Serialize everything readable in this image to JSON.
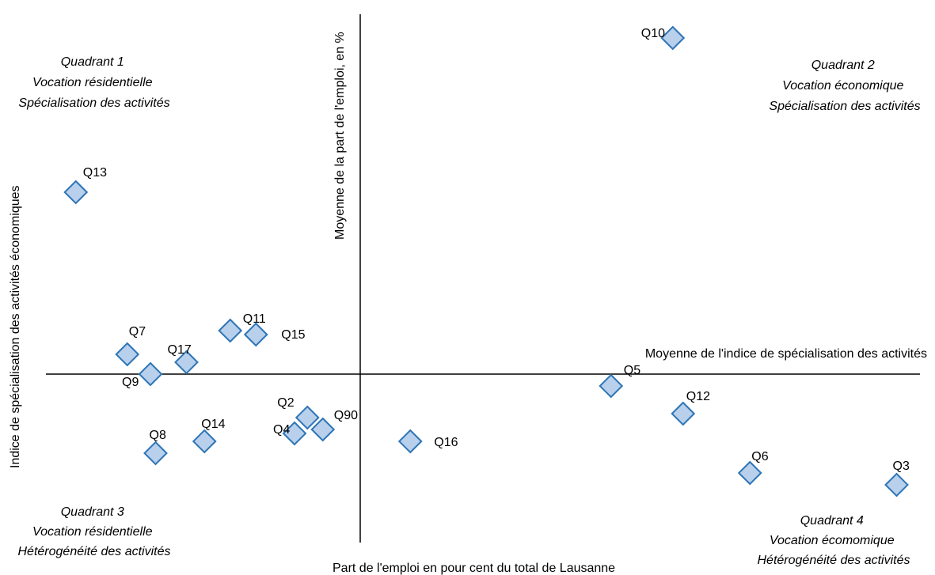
{
  "chart_data": {
    "type": "scatter",
    "title": "",
    "xlabel": "Part de l'emploi en pour cent du total de Lausanne",
    "ylabel": "Indice de spécialisation des activités économiques",
    "x_reference_label": "Moyenne de la part de l'emploi, en %",
    "y_reference_label": "Moyenne de l'indice de spécialisation des activités",
    "grid": false,
    "legend": "none",
    "marker_color": "#b8d0ec",
    "marker_stroke": "#2e75b6",
    "quadrants": [
      {
        "id": "q1",
        "lines": [
          "Quadrant 1",
          "Vocation résidentielle",
          "Spécialisation des activités"
        ]
      },
      {
        "id": "q2",
        "lines": [
          "Quadrant 2",
          "Vocation économique",
          "Spécialisation des activités"
        ]
      },
      {
        "id": "q3",
        "lines": [
          "Quadrant 3",
          "Vocation résidentielle",
          "Hétérogénéité des activités"
        ]
      },
      {
        "id": "q4",
        "lines": [
          "Quadrant 4",
          "Vocation écomomique",
          "Hétérogénéité des activités"
        ]
      }
    ],
    "points": [
      {
        "label": "Q10",
        "x": 12.35,
        "y": 0.85
      },
      {
        "label": "Q13",
        "x": 0.75,
        "y": 0.46
      },
      {
        "label": "Q11",
        "x": 3.75,
        "y": 0.11
      },
      {
        "label": "Q15",
        "x": 4.25,
        "y": 0.1
      },
      {
        "label": "Q7",
        "x": 1.75,
        "y": 0.05
      },
      {
        "label": "Q17",
        "x": 2.9,
        "y": 0.03
      },
      {
        "label": "Q9",
        "x": 2.2,
        "y": 0.0
      },
      {
        "label": "Q5",
        "x": 11.15,
        "y": -0.03
      },
      {
        "label": "Q12",
        "x": 12.55,
        "y": -0.1
      },
      {
        "label": "Q2",
        "x": 5.25,
        "y": -0.11
      },
      {
        "label": "Q90",
        "x": 5.55,
        "y": -0.14
      },
      {
        "label": "Q4",
        "x": 5.0,
        "y": -0.15
      },
      {
        "label": "Q16",
        "x": 7.25,
        "y": -0.17
      },
      {
        "label": "Q14",
        "x": 3.25,
        "y": -0.17
      },
      {
        "label": "Q8",
        "x": 2.3,
        "y": -0.2
      },
      {
        "label": "Q6",
        "x": 13.85,
        "y": -0.25
      },
      {
        "label": "Q3",
        "x": 16.7,
        "y": -0.28
      }
    ]
  }
}
